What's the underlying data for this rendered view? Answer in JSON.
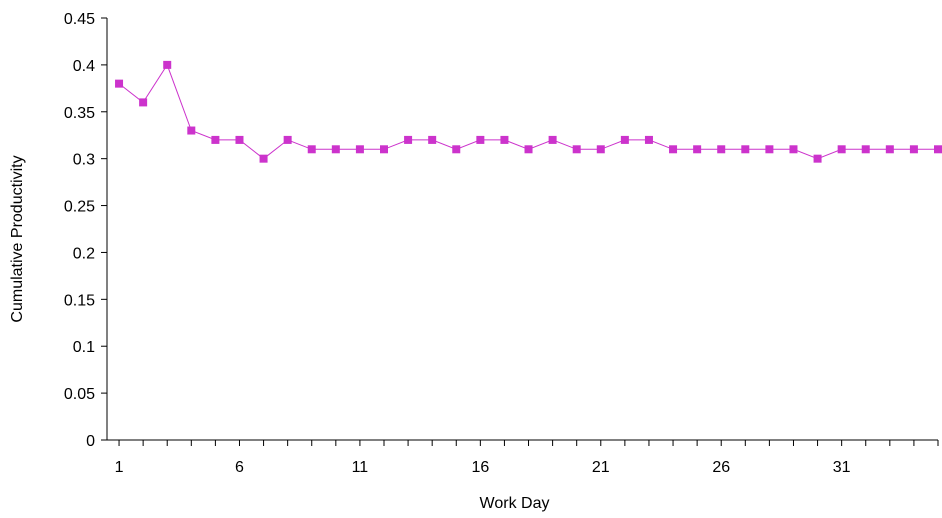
{
  "chart_data": {
    "type": "line",
    "xlabel": "Work Day",
    "ylabel": "Cumulative Productivity",
    "ylim": [
      0,
      0.45
    ],
    "xlim": [
      1,
      35
    ],
    "grid": false,
    "series_color": "#cc33cc",
    "y_ticks": [
      "0",
      "0.05",
      "0.1",
      "0.15",
      "0.2",
      "0.25",
      "0.3",
      "0.35",
      "0.4",
      "0.45"
    ],
    "x_ticks": [
      "1",
      "6",
      "11",
      "16",
      "21",
      "26",
      "31"
    ],
    "x_tick_values": [
      1,
      6,
      11,
      16,
      21,
      26,
      31
    ],
    "series": [
      {
        "x": [
          1,
          2,
          3,
          4,
          5,
          6,
          7,
          8,
          9,
          10,
          11,
          12,
          13,
          14,
          15,
          16,
          17,
          18,
          19,
          20,
          21,
          22,
          23,
          24,
          25,
          26,
          27,
          28,
          29,
          30,
          31,
          32,
          33,
          34,
          35
        ],
        "values": [
          0.38,
          0.36,
          0.4,
          0.33,
          0.32,
          0.32,
          0.3,
          0.32,
          0.31,
          0.31,
          0.31,
          0.31,
          0.32,
          0.32,
          0.31,
          0.32,
          0.32,
          0.31,
          0.32,
          0.31,
          0.31,
          0.32,
          0.32,
          0.31,
          0.31,
          0.31,
          0.31,
          0.31,
          0.31,
          0.3,
          0.31,
          0.31,
          0.31,
          0.31,
          0.31
        ]
      }
    ]
  }
}
